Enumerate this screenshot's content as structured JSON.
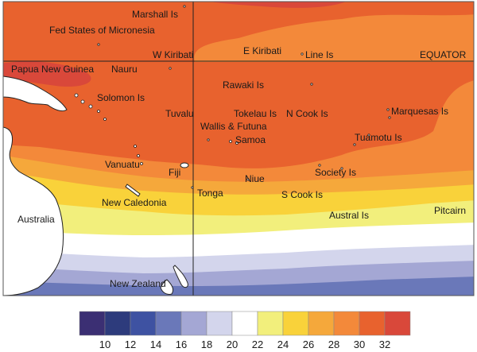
{
  "map": {
    "equator_label": "EQUATOR",
    "labels": {
      "marshall": "Marshall Is",
      "micronesia": "Fed States of Micronesia",
      "w_kiribati": "W Kiribati",
      "e_kiribati": "E Kiribati",
      "line": "Line Is",
      "png": "Papua New Guinea",
      "nauru": "Nauru",
      "rawaki": "Rawaki Is",
      "solomon": "Solomon Is",
      "tuvalu": "Tuvalu",
      "tokelau": "Tokelau Is",
      "ncook": "N Cook Is",
      "marquesas": "Marquesas Is",
      "wallis": "Wallis & Futuna",
      "samoa": "Samoa",
      "tuamotu": "Tuamotu Is",
      "vanuatu": "Vanuatu",
      "fiji": "Fiji",
      "niue": "Niue",
      "society": "Society Is",
      "tonga": "Tonga",
      "scook": "S Cook Is",
      "newcal": "New Caledonia",
      "austral": "Austral Is",
      "pitcairn": "Pitcairn",
      "australia": "Australia",
      "nz": "New Zealand"
    }
  },
  "colorbar": {
    "colors": [
      "#3b2f73",
      "#2d3b7c",
      "#3e52a2",
      "#6a78b9",
      "#a4a7d4",
      "#d3d5ec",
      "#ffffff",
      "#f2ef7c",
      "#f9d23a",
      "#f5a83b",
      "#f3893a",
      "#e8622e",
      "#d9483a"
    ],
    "ticks": [
      "10",
      "12",
      "14",
      "16",
      "18",
      "20",
      "22",
      "24",
      "26",
      "28",
      "30",
      "32"
    ]
  }
}
